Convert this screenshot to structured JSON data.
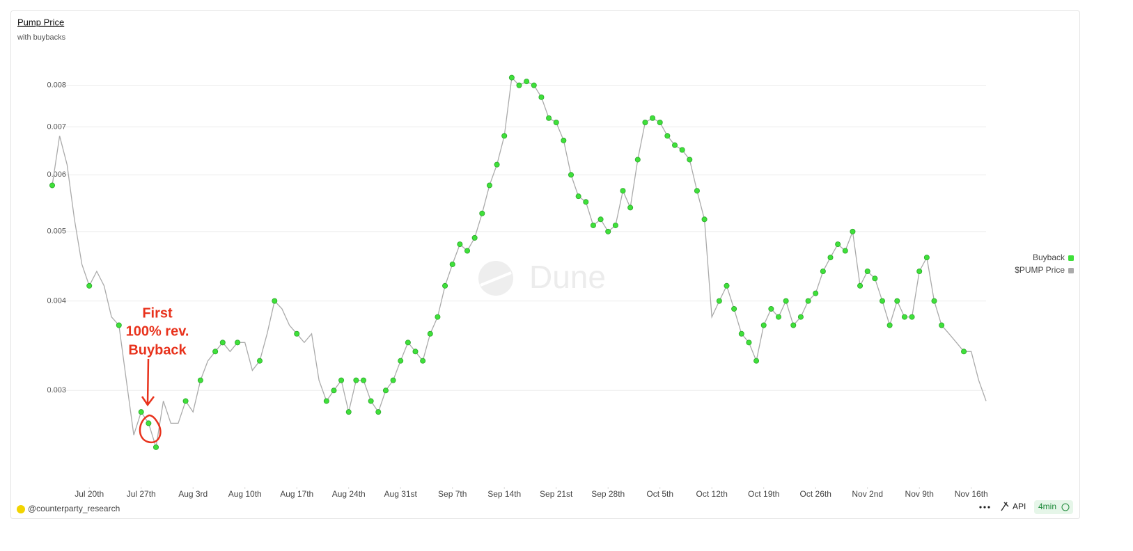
{
  "chart_data": {
    "type": "line",
    "title": "Pump Price",
    "subtitle": "with buybacks",
    "x": [
      "07-15",
      "07-16",
      "07-17",
      "07-18",
      "07-19",
      "07-20",
      "07-21",
      "07-22",
      "07-23",
      "07-24",
      "07-25",
      "07-26",
      "07-27",
      "07-28",
      "07-29",
      "07-30",
      "07-31",
      "08-01",
      "08-02",
      "08-03",
      "08-04",
      "08-05",
      "08-06",
      "08-07",
      "08-08",
      "08-09",
      "08-10",
      "08-11",
      "08-12",
      "08-13",
      "08-14",
      "08-15",
      "08-16",
      "08-17",
      "08-18",
      "08-19",
      "08-20",
      "08-21",
      "08-22",
      "08-23",
      "08-24",
      "08-25",
      "08-26",
      "08-27",
      "08-28",
      "08-29",
      "08-30",
      "08-31",
      "09-01",
      "09-02",
      "09-03",
      "09-04",
      "09-05",
      "09-06",
      "09-07",
      "09-08",
      "09-09",
      "09-10",
      "09-11",
      "09-12",
      "09-13",
      "09-14",
      "09-15",
      "09-16",
      "09-17",
      "09-18",
      "09-19",
      "09-20",
      "09-21",
      "09-22",
      "09-23",
      "09-24",
      "09-25",
      "09-26",
      "09-27",
      "09-28",
      "09-29",
      "09-30",
      "10-01",
      "10-02",
      "10-03",
      "10-04",
      "10-05",
      "10-06",
      "10-07",
      "10-08",
      "10-09",
      "10-10",
      "10-11",
      "10-12",
      "10-13",
      "10-14",
      "10-15",
      "10-16",
      "10-17",
      "10-18",
      "10-19",
      "10-20",
      "10-21",
      "10-22",
      "10-23",
      "10-24",
      "10-25",
      "10-26",
      "10-27",
      "10-28",
      "10-29",
      "10-30",
      "10-31",
      "11-01",
      "11-02",
      "11-03",
      "11-04",
      "11-05",
      "11-06",
      "11-07",
      "11-08",
      "11-09",
      "11-10",
      "11-11",
      "11-12",
      "11-13",
      "11-14",
      "11-15",
      "11-16",
      "11-17",
      "11-18"
    ],
    "series": [
      {
        "name": "$PUMP Price",
        "color": "#aaaaaa",
        "values": [
          0.0058,
          0.0068,
          0.0062,
          0.0052,
          0.0045,
          0.0042,
          0.0044,
          0.0042,
          0.0038,
          0.0037,
          0.0031,
          0.0026,
          0.0028,
          0.0027,
          0.0025,
          0.0029,
          0.0027,
          0.0027,
          0.0029,
          0.0028,
          0.0031,
          0.0033,
          0.0034,
          0.0035,
          0.0034,
          0.0035,
          0.0035,
          0.0032,
          0.0033,
          0.0036,
          0.004,
          0.0039,
          0.0037,
          0.0036,
          0.0035,
          0.0036,
          0.0031,
          0.0029,
          0.003,
          0.0031,
          0.0028,
          0.0031,
          0.0031,
          0.0029,
          0.0028,
          0.003,
          0.0031,
          0.0033,
          0.0035,
          0.0034,
          0.0033,
          0.0036,
          0.0038,
          0.0042,
          0.0045,
          0.0048,
          0.0047,
          0.0049,
          0.0053,
          0.0058,
          0.0062,
          0.0068,
          0.0082,
          0.008,
          0.0081,
          0.008,
          0.0077,
          0.0072,
          0.0071,
          0.0067,
          0.006,
          0.0056,
          0.0055,
          0.0051,
          0.0052,
          0.005,
          0.0051,
          0.0057,
          0.0054,
          0.0063,
          0.0071,
          0.0072,
          0.0071,
          0.0068,
          0.0066,
          0.0065,
          0.0063,
          0.0057,
          0.0052,
          0.0038,
          0.004,
          0.0042,
          0.0039,
          0.0036,
          0.0035,
          0.0033,
          0.0037,
          0.0039,
          0.0038,
          0.004,
          0.0037,
          0.0038,
          0.004,
          0.0041,
          0.0044,
          0.0046,
          0.0048,
          0.0047,
          0.005,
          0.0042,
          0.0044,
          0.0043,
          0.004,
          0.0037,
          0.004,
          0.0038,
          0.0038,
          0.0044,
          0.0046,
          0.004,
          0.0037,
          0.0036,
          0.0035,
          0.0034,
          0.0034,
          0.0031,
          0.0029
        ]
      },
      {
        "name": "Buyback",
        "color": "#3fe03a",
        "values": [
          0.0058,
          null,
          null,
          null,
          null,
          0.0042,
          null,
          null,
          null,
          0.0037,
          null,
          null,
          0.0028,
          0.0027,
          0.0025,
          null,
          null,
          null,
          0.0029,
          null,
          0.0031,
          null,
          0.0034,
          0.0035,
          null,
          0.0035,
          null,
          null,
          0.0033,
          null,
          0.004,
          null,
          null,
          0.0036,
          null,
          null,
          null,
          0.0029,
          0.003,
          0.0031,
          0.0028,
          0.0031,
          0.0031,
          0.0029,
          0.0028,
          0.003,
          0.0031,
          0.0033,
          0.0035,
          0.0034,
          0.0033,
          0.0036,
          0.0038,
          0.0042,
          0.0045,
          0.0048,
          0.0047,
          0.0049,
          0.0053,
          0.0058,
          0.0062,
          0.0068,
          0.0082,
          0.008,
          0.0081,
          0.008,
          0.0077,
          0.0072,
          0.0071,
          0.0067,
          0.006,
          0.0056,
          0.0055,
          0.0051,
          0.0052,
          0.005,
          0.0051,
          0.0057,
          0.0054,
          0.0063,
          0.0071,
          0.0072,
          0.0071,
          0.0068,
          0.0066,
          0.0065,
          0.0063,
          0.0057,
          0.0052,
          null,
          0.004,
          0.0042,
          0.0039,
          0.0036,
          0.0035,
          0.0033,
          0.0037,
          0.0039,
          0.0038,
          0.004,
          0.0037,
          0.0038,
          0.004,
          0.0041,
          0.0044,
          0.0046,
          0.0048,
          0.0047,
          0.005,
          0.0042,
          0.0044,
          0.0043,
          0.004,
          0.0037,
          0.004,
          0.0038,
          0.0038,
          0.0044,
          0.0046,
          0.004,
          0.0037,
          null,
          null,
          0.0034,
          null,
          null,
          null
        ]
      }
    ],
    "xlim": [
      "07-15",
      "11-18"
    ],
    "xticks": [
      {
        "value": "07-20",
        "label": "Jul 20th"
      },
      {
        "value": "07-27",
        "label": "Jul 27th"
      },
      {
        "value": "08-03",
        "label": "Aug 3rd"
      },
      {
        "value": "08-10",
        "label": "Aug 10th"
      },
      {
        "value": "08-17",
        "label": "Aug 17th"
      },
      {
        "value": "08-24",
        "label": "Aug 24th"
      },
      {
        "value": "08-31",
        "label": "Aug 31st"
      },
      {
        "value": "09-07",
        "label": "Sep 7th"
      },
      {
        "value": "09-14",
        "label": "Sep 14th"
      },
      {
        "value": "09-21",
        "label": "Sep 21st"
      },
      {
        "value": "09-28",
        "label": "Sep 28th"
      },
      {
        "value": "10-05",
        "label": "Oct 5th"
      },
      {
        "value": "10-12",
        "label": "Oct 12th"
      },
      {
        "value": "10-19",
        "label": "Oct 19th"
      },
      {
        "value": "10-26",
        "label": "Oct 26th"
      },
      {
        "value": "11-02",
        "label": "Nov 2nd"
      },
      {
        "value": "11-09",
        "label": "Nov 9th"
      },
      {
        "value": "11-16",
        "label": "Nov 16th"
      }
    ],
    "ylim": [
      0.0022,
      0.0088
    ],
    "yticks": [
      0.003,
      0.004,
      0.005,
      0.006,
      0.007,
      0.008
    ],
    "log_y": true,
    "grid": true,
    "legend": "right",
    "annotation": [
      "First",
      "100% rev.",
      "Buyback"
    ],
    "watermark": "Dune",
    "footer": {
      "author": "@counterparty_research",
      "api": "API",
      "refresh": "4min"
    }
  }
}
